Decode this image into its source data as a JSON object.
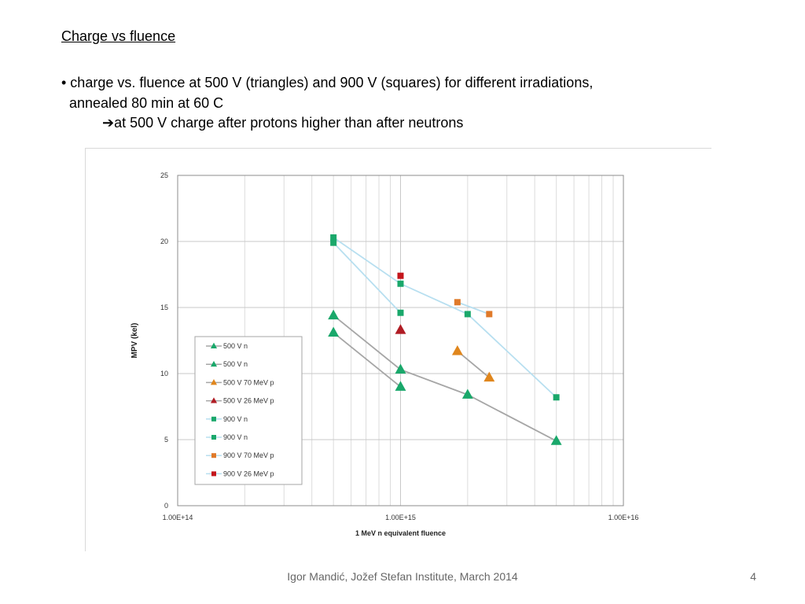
{
  "slide": {
    "title": "Charge vs fluence ",
    "bullet_line1": "• charge vs. fluence at 500 V (triangles) and 900 V (squares) for different irradiations,",
    "bullet_line2": "annealed 80 min at 60 C",
    "conclusion": "at 500 V charge after protons higher than after neutrons",
    "footer": "Igor Mandić, Jožef Stefan Institute, March 2014",
    "page_number": "4"
  },
  "chart_data": {
    "type": "scatter",
    "xlabel": "1 MeV n equivalent fluence",
    "ylabel": "MPV (kel)",
    "xscale": "log",
    "xlim": [
      100000000000000.0,
      1e+16
    ],
    "ylim": [
      0,
      25
    ],
    "xticks": [
      100000000000000.0,
      1000000000000000.0,
      1e+16
    ],
    "xtick_labels": [
      "1.00E+14",
      "1.00E+15",
      "1.00E+16"
    ],
    "yticks": [
      0,
      5,
      10,
      15,
      20,
      25
    ],
    "ytick_labels": [
      "0",
      "5",
      "10",
      "15",
      "20",
      "25"
    ],
    "grid": true,
    "legend_position": "inside-left",
    "series": [
      {
        "name": "500 V n",
        "marker": "triangle",
        "color": "#1aa86b",
        "line_color": "#a6a6a6",
        "x": [
          500000000000000.0,
          1000000000000000.0,
          2000000000000000.0,
          5000000000000000.0
        ],
        "y": [
          14.4,
          10.3,
          8.4,
          4.9
        ]
      },
      {
        "name": "500 V n",
        "marker": "triangle",
        "color": "#1aa86b",
        "line_color": "#a6a6a6",
        "x": [
          500000000000000.0,
          1000000000000000.0
        ],
        "y": [
          13.1,
          9.0
        ]
      },
      {
        "name": "500 V 70 MeV p",
        "marker": "triangle",
        "color": "#e0861d",
        "line_color": "#a6a6a6",
        "x": [
          1800000000000000.0,
          2500000000000000.0
        ],
        "y": [
          11.7,
          9.7
        ]
      },
      {
        "name": "500 V 26 MeV p",
        "marker": "triangle",
        "color": "#b01c24",
        "line_color": "#a6a6a6",
        "x": [
          1000000000000000.0
        ],
        "y": [
          13.3
        ]
      },
      {
        "name": "900 V n",
        "marker": "square",
        "color": "#1aa86b",
        "line_color": "#b7dff0",
        "x": [
          500000000000000.0,
          1000000000000000.0,
          2000000000000000.0,
          5000000000000000.0
        ],
        "y": [
          20.3,
          16.8,
          14.5,
          8.2
        ]
      },
      {
        "name": "900 V n",
        "marker": "square",
        "color": "#1aa86b",
        "line_color": "#b7dff0",
        "x": [
          500000000000000.0,
          1000000000000000.0
        ],
        "y": [
          19.9,
          14.6
        ]
      },
      {
        "name": "900 V 70 MeV p",
        "marker": "square",
        "color": "#e07a2a",
        "line_color": "#b7dff0",
        "x": [
          1800000000000000.0,
          2500000000000000.0
        ],
        "y": [
          15.4,
          14.5
        ]
      },
      {
        "name": "900 V 26 MeV p",
        "marker": "square",
        "color": "#c4161c",
        "line_color": "#b7dff0",
        "x": [
          1000000000000000.0
        ],
        "y": [
          17.4
        ]
      }
    ]
  }
}
